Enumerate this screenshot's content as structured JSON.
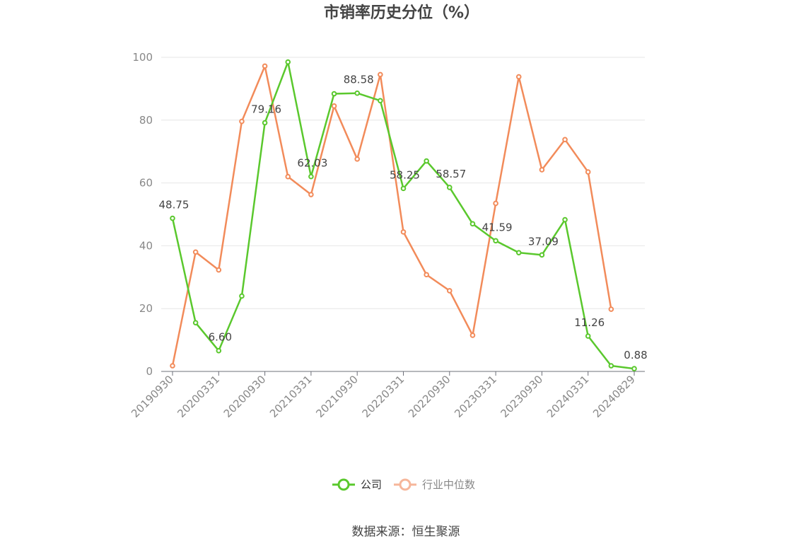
{
  "chart_data": {
    "type": "line",
    "title": "市销率历史分位（%）",
    "x_tick_labels": [
      "20190930",
      "20200331",
      "20200930",
      "20210331",
      "20210930",
      "20220331",
      "20220930",
      "20230331",
      "20230930",
      "20240331",
      "20240829"
    ],
    "x": [
      "20190930",
      "20191231",
      "20200331",
      "20200630",
      "20200930",
      "20201231",
      "20210331",
      "20210630",
      "20210930",
      "20211231",
      "20220331",
      "20220630",
      "20220930",
      "20221231",
      "20230331",
      "20230630",
      "20230930",
      "20231231",
      "20240331",
      "20240630",
      "20240829"
    ],
    "ylim": [
      0,
      100
    ],
    "y_ticks": [
      0,
      20,
      40,
      60,
      80,
      100
    ],
    "grid": true,
    "legend_position": "bottom",
    "series": [
      {
        "name": "公司",
        "color": "#5ac82d",
        "values": [
          48.75,
          15.5,
          6.6,
          24.0,
          79.16,
          98.5,
          62.03,
          88.4,
          88.58,
          86.2,
          58.25,
          67.0,
          58.57,
          47.0,
          41.59,
          37.8,
          37.09,
          48.3,
          11.26,
          1.8,
          0.88
        ],
        "labels": {
          "0": "48.75",
          "2": "6.60",
          "4": "79.16",
          "6": "62.03",
          "8": "88.58",
          "10": "58.25",
          "12": "58.57",
          "14": "41.59",
          "16": "37.09",
          "18": "11.26",
          "20": "0.88"
        }
      },
      {
        "name": "行业中位数",
        "color": "#f28b5a",
        "values": [
          1.8,
          38.0,
          32.3,
          79.6,
          97.2,
          62.0,
          56.3,
          84.5,
          67.6,
          94.5,
          44.4,
          30.8,
          25.7,
          11.5,
          53.5,
          93.8,
          64.2,
          73.8,
          63.5,
          19.8,
          null
        ]
      }
    ],
    "source": "数据来源：恒生聚源"
  }
}
